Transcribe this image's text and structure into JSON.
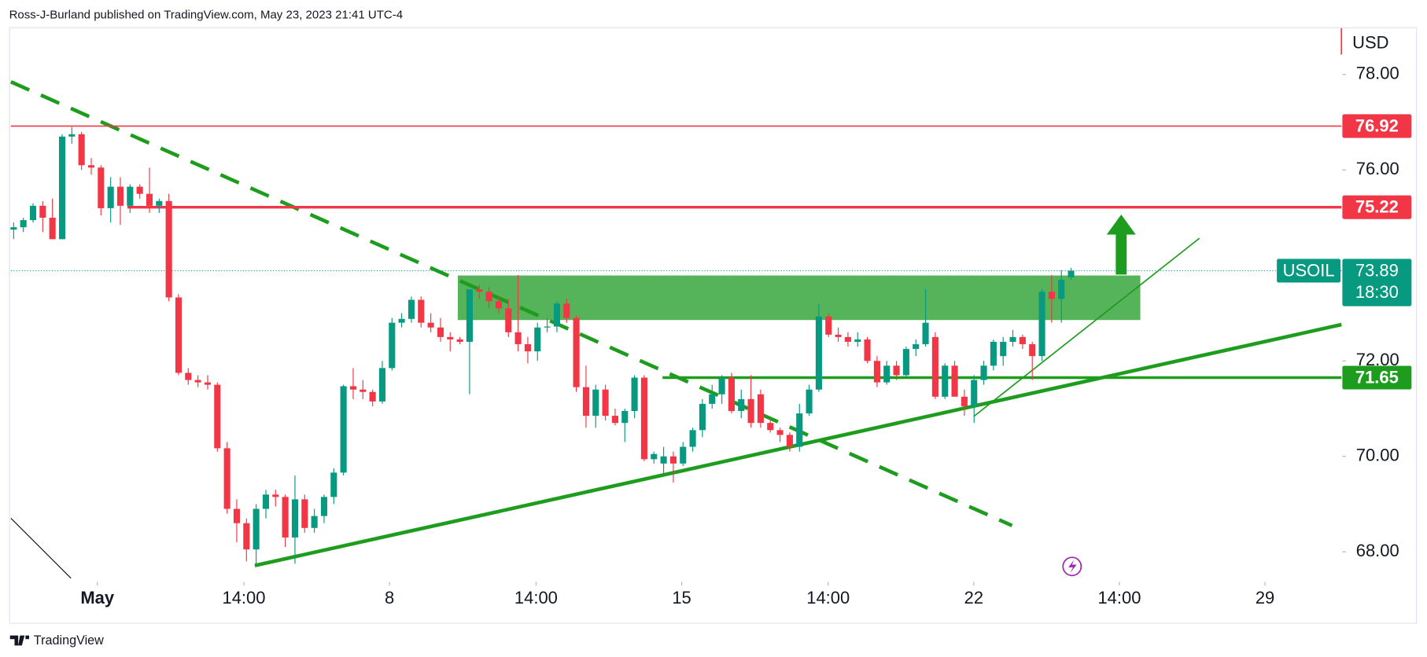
{
  "header": {
    "attribution": "Ross-J-Burland published on TradingView.com, May 23, 2023 21:41 UTC-4"
  },
  "footer": {
    "brand": "TradingView"
  },
  "chart_data": {
    "type": "candlestick",
    "symbol": "USOIL",
    "currency": "USD",
    "up_color": "#089981",
    "down_color": "#f23645",
    "x": [
      0,
      1,
      2,
      3,
      4,
      5,
      6,
      7,
      8,
      9,
      10,
      11,
      12,
      13,
      14,
      15,
      16,
      17,
      18,
      19,
      20,
      21,
      22,
      23,
      24,
      25,
      26,
      27,
      28,
      29,
      30,
      31,
      32,
      33,
      34,
      35,
      36,
      37,
      38,
      39,
      40,
      41,
      42,
      43,
      44,
      45,
      46,
      47,
      48,
      49,
      50,
      51,
      52,
      53,
      54,
      55,
      56,
      57,
      58,
      59,
      60,
      61,
      62,
      63,
      64,
      65,
      66,
      67,
      68,
      69,
      70,
      71,
      72,
      73,
      74,
      75,
      76,
      77,
      78,
      79,
      80,
      81,
      82,
      83,
      84,
      85,
      86,
      87,
      88,
      89,
      90,
      91,
      92,
      93,
      94,
      95,
      96,
      97,
      98,
      99,
      100,
      101,
      102,
      103,
      104,
      105,
      106,
      107,
      108,
      109
    ],
    "ohlc": [
      [
        74.75,
        74.9,
        74.55,
        74.8
      ],
      [
        74.8,
        75.0,
        74.7,
        74.95
      ],
      [
        74.95,
        75.3,
        74.9,
        75.25
      ],
      [
        75.25,
        75.35,
        74.7,
        75.0
      ],
      [
        75.0,
        75.4,
        74.65,
        74.55
      ],
      [
        74.55,
        76.75,
        74.55,
        76.7
      ],
      [
        76.7,
        76.9,
        76.55,
        76.75
      ],
      [
        76.75,
        76.8,
        76.0,
        76.1
      ],
      [
        76.1,
        76.25,
        75.9,
        76.05
      ],
      [
        76.05,
        76.1,
        75.05,
        75.2
      ],
      [
        75.2,
        75.85,
        74.9,
        75.65
      ],
      [
        75.65,
        75.85,
        74.85,
        75.25
      ],
      [
        75.25,
        75.7,
        75.1,
        75.65
      ],
      [
        75.65,
        75.7,
        75.4,
        75.5
      ],
      [
        75.5,
        76.05,
        75.1,
        75.25
      ],
      [
        75.25,
        75.4,
        75.1,
        75.35
      ],
      [
        75.35,
        75.5,
        73.25,
        73.33
      ],
      [
        73.33,
        73.4,
        71.7,
        71.75
      ],
      [
        71.75,
        71.85,
        71.5,
        71.6
      ],
      [
        71.6,
        71.7,
        71.45,
        71.55
      ],
      [
        71.55,
        71.7,
        71.4,
        71.5
      ],
      [
        71.5,
        71.55,
        70.1,
        70.17
      ],
      [
        70.17,
        70.3,
        68.8,
        68.9
      ],
      [
        68.9,
        69.1,
        68.2,
        68.6
      ],
      [
        68.6,
        68.7,
        67.8,
        68.05
      ],
      [
        68.05,
        69.0,
        67.75,
        68.9
      ],
      [
        68.9,
        69.3,
        68.7,
        69.2
      ],
      [
        69.2,
        69.3,
        68.95,
        69.15
      ],
      [
        69.15,
        69.2,
        68.1,
        68.3
      ],
      [
        68.3,
        69.6,
        67.75,
        69.1
      ],
      [
        69.1,
        69.2,
        68.4,
        68.5
      ],
      [
        68.5,
        68.9,
        68.4,
        68.75
      ],
      [
        68.75,
        69.2,
        68.6,
        69.15
      ],
      [
        69.15,
        69.75,
        69.0,
        69.66
      ],
      [
        69.66,
        71.5,
        69.6,
        71.47
      ],
      [
        71.47,
        71.85,
        71.2,
        71.4
      ],
      [
        71.4,
        71.6,
        71.2,
        71.35
      ],
      [
        71.35,
        71.4,
        71.05,
        71.15
      ],
      [
        71.15,
        72.0,
        71.1,
        71.85
      ],
      [
        71.85,
        72.9,
        71.8,
        72.8
      ],
      [
        72.8,
        73.0,
        72.7,
        72.88
      ],
      [
        72.88,
        73.35,
        72.8,
        73.28
      ],
      [
        73.28,
        73.35,
        72.7,
        72.8
      ],
      [
        72.8,
        73.0,
        72.6,
        72.7
      ],
      [
        72.7,
        72.9,
        72.4,
        72.5
      ],
      [
        72.5,
        72.6,
        72.2,
        72.45
      ],
      [
        72.45,
        72.5,
        72.35,
        72.4
      ],
      [
        72.4,
        73.5,
        71.3,
        73.5
      ],
      [
        73.5,
        73.6,
        73.3,
        73.45
      ],
      [
        73.45,
        73.55,
        73.1,
        73.25
      ],
      [
        73.25,
        73.35,
        73.0,
        73.1
      ],
      [
        73.1,
        73.3,
        72.5,
        72.6
      ],
      [
        72.6,
        73.8,
        72.2,
        72.35
      ],
      [
        72.35,
        72.5,
        71.95,
        72.2
      ],
      [
        72.2,
        72.8,
        72.0,
        72.7
      ],
      [
        72.7,
        72.9,
        72.6,
        72.72
      ],
      [
        72.72,
        73.25,
        72.6,
        73.2
      ],
      [
        73.2,
        73.3,
        72.8,
        72.9
      ],
      [
        72.9,
        72.95,
        71.35,
        71.45
      ],
      [
        71.45,
        71.9,
        70.6,
        70.85
      ],
      [
        70.85,
        71.5,
        70.6,
        71.4
      ],
      [
        71.4,
        71.5,
        70.75,
        70.85
      ],
      [
        70.85,
        71.0,
        70.65,
        70.7
      ],
      [
        70.7,
        71.0,
        70.3,
        70.95
      ],
      [
        70.95,
        71.7,
        70.8,
        71.65
      ],
      [
        71.65,
        71.7,
        69.9,
        69.94
      ],
      [
        69.94,
        70.1,
        69.85,
        70.05
      ],
      [
        69.85,
        70.2,
        69.6,
        70.0
      ],
      [
        70.0,
        70.1,
        69.45,
        69.85
      ],
      [
        69.85,
        70.3,
        69.8,
        70.2
      ],
      [
        70.2,
        70.6,
        70.1,
        70.55
      ],
      [
        70.55,
        71.2,
        70.4,
        71.1
      ],
      [
        71.1,
        71.5,
        71.0,
        71.3
      ],
      [
        71.3,
        71.7,
        71.1,
        71.65
      ],
      [
        71.65,
        71.75,
        70.9,
        70.95
      ],
      [
        70.95,
        71.4,
        70.8,
        71.2
      ],
      [
        71.2,
        71.7,
        70.6,
        70.7
      ],
      [
        71.3,
        71.4,
        70.6,
        70.7
      ],
      [
        70.7,
        70.8,
        70.5,
        70.55
      ],
      [
        70.55,
        70.6,
        70.3,
        70.45
      ],
      [
        70.45,
        70.5,
        70.1,
        70.2
      ],
      [
        70.2,
        71.1,
        70.1,
        70.9
      ],
      [
        70.9,
        71.5,
        70.85,
        71.4
      ],
      [
        71.4,
        73.2,
        71.35,
        72.93
      ],
      [
        72.93,
        73.0,
        72.5,
        72.55
      ],
      [
        72.55,
        72.7,
        72.4,
        72.5
      ],
      [
        72.5,
        72.6,
        72.3,
        72.4
      ],
      [
        72.4,
        72.6,
        72.3,
        72.45
      ],
      [
        72.45,
        72.5,
        71.95,
        72.0
      ],
      [
        72.0,
        72.1,
        71.45,
        71.55
      ],
      [
        71.55,
        72.0,
        71.5,
        71.9
      ],
      [
        71.9,
        72.0,
        71.6,
        71.7
      ],
      [
        71.7,
        72.3,
        71.65,
        72.25
      ],
      [
        72.25,
        72.45,
        72.1,
        72.35
      ],
      [
        72.35,
        73.5,
        72.3,
        72.8
      ],
      [
        72.5,
        72.6,
        71.2,
        71.25
      ],
      [
        71.25,
        71.95,
        71.2,
        71.9
      ],
      [
        71.9,
        72.0,
        71.3,
        71.25
      ],
      [
        71.25,
        71.4,
        70.85,
        71.05
      ],
      [
        71.05,
        71.7,
        70.7,
        71.6
      ],
      [
        71.6,
        72.0,
        71.5,
        71.9
      ],
      [
        71.9,
        72.45,
        71.8,
        72.4
      ],
      [
        72.1,
        72.5,
        71.9,
        72.4
      ],
      [
        72.4,
        72.65,
        72.3,
        72.5
      ],
      [
        72.5,
        72.55,
        72.25,
        72.35
      ],
      [
        72.35,
        72.4,
        71.6,
        72.1
      ],
      [
        72.1,
        73.5,
        72.0,
        73.45
      ],
      [
        73.45,
        73.8,
        72.8,
        73.3
      ],
      [
        73.3,
        73.9,
        72.8,
        73.7
      ],
      [
        73.75,
        73.95,
        73.7,
        73.89
      ]
    ],
    "xlim": [
      -0.28,
      136.87
    ],
    "xticks": [
      {
        "value": 8.63,
        "label": "May"
      },
      {
        "value": 23.73,
        "label": "14:00"
      },
      {
        "value": 38.74,
        "label": "8"
      },
      {
        "value": 53.85,
        "label": "14:00"
      },
      {
        "value": 68.86,
        "label": "15"
      },
      {
        "value": 83.96,
        "label": "14:00"
      },
      {
        "value": 98.97,
        "label": "22"
      },
      {
        "value": 113.98,
        "label": "14:00"
      },
      {
        "value": 128.99,
        "label": "29"
      }
    ],
    "ylim": [
      67.37,
      78.99
    ],
    "yticks": [
      {
        "value": 68,
        "label": "68.00"
      },
      {
        "value": 70,
        "label": "70.00"
      },
      {
        "value": 72,
        "label": "72.00"
      },
      {
        "value": 76,
        "label": "76.00"
      },
      {
        "value": 78,
        "label": "78.00"
      }
    ],
    "levels": [
      {
        "value": 76.92,
        "color": "#f23645"
      },
      {
        "value": 75.22,
        "color": "#f23645"
      },
      {
        "value": 71.65,
        "color": "#1e9c1e"
      }
    ],
    "last_price": 73.89,
    "countdown": "18:30"
  }
}
